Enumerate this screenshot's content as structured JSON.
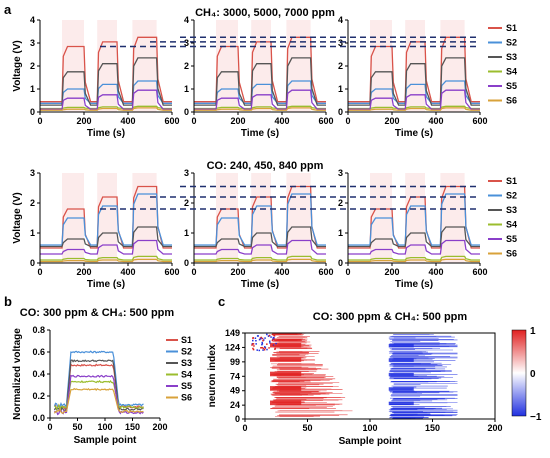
{
  "panels": {
    "a": {
      "letter": "a"
    },
    "b": {
      "letter": "b"
    },
    "c": {
      "letter": "c"
    }
  },
  "colors": {
    "S1": "#d9534a",
    "S2": "#4a90d9",
    "S3": "#555555",
    "S4": "#9bbd2e",
    "S5": "#8a3fc9",
    "S6": "#d8a23a",
    "guide": "#1f2f6e",
    "pos": "#e02020",
    "neg": "#2030e0"
  },
  "chart_data": [
    {
      "id": "a_top",
      "type": "line",
      "title": "CH₄: 3000, 5000, 7000 ppm",
      "xlabel": "Time (s)",
      "ylabel": "Voltage (V)",
      "xlim": [
        0,
        600
      ],
      "ylim": [
        0,
        4
      ],
      "xticks": [
        "0",
        "200",
        "400",
        "600"
      ],
      "yticks": [
        "0",
        "1",
        "2",
        "3",
        "4"
      ],
      "n_subplots": 3,
      "pulses": [
        [
          100,
          200
        ],
        [
          260,
          350
        ],
        [
          420,
          530
        ]
      ],
      "legend": [
        "S1",
        "S2",
        "S3",
        "S4",
        "S5",
        "S6"
      ],
      "baseline": [
        0.45,
        0.38,
        0.3,
        0.15,
        0.12,
        0.08
      ],
      "levels": [
        [
          2.85,
          3.05,
          3.25
        ],
        [
          1.0,
          1.2,
          1.35
        ],
        [
          1.75,
          2.1,
          2.35
        ],
        [
          0.2,
          0.22,
          0.25
        ],
        [
          0.6,
          0.75,
          0.95
        ],
        [
          0.12,
          0.15,
          0.18
        ]
      ],
      "guides": [
        2.85,
        3.05,
        3.25
      ]
    },
    {
      "id": "a_bottom",
      "type": "line",
      "title": "CO: 240, 450, 840 ppm",
      "xlabel": "Time (s)",
      "ylabel": "Voltage (V)",
      "xlim": [
        0,
        600
      ],
      "ylim": [
        0,
        3
      ],
      "xticks": [
        "0",
        "200",
        "400",
        "600"
      ],
      "yticks": [
        "0",
        "1",
        "2",
        "3"
      ],
      "n_subplots": 3,
      "pulses": [
        [
          100,
          200
        ],
        [
          260,
          350
        ],
        [
          420,
          530
        ]
      ],
      "legend": [
        "S1",
        "S2",
        "S3",
        "S4",
        "S5",
        "S6"
      ],
      "baseline": [
        0.5,
        0.6,
        0.55,
        0.1,
        0.3,
        0.05
      ],
      "levels": [
        [
          1.8,
          2.2,
          2.55
        ],
        [
          1.5,
          1.9,
          2.3
        ],
        [
          0.8,
          1.0,
          1.2
        ],
        [
          0.15,
          0.18,
          0.22
        ],
        [
          0.45,
          0.6,
          0.75
        ],
        [
          0.08,
          0.1,
          0.12
        ]
      ],
      "guides": [
        1.8,
        2.2,
        2.55
      ]
    },
    {
      "id": "b",
      "type": "line",
      "title": "CO: 300 ppm & CH₄: 500 ppm",
      "xlabel": "Sample point",
      "ylabel": "Normalized voltage",
      "xlim": [
        0,
        200
      ],
      "ylim": [
        0,
        0.8
      ],
      "xticks": [
        "0",
        "50",
        "100",
        "150",
        "200"
      ],
      "yticks": [
        "0.0",
        "0.2",
        "0.4",
        "0.6",
        "0.8"
      ],
      "legend": [
        "S1",
        "S2",
        "S3",
        "S4",
        "S5",
        "S6"
      ],
      "baseline": [
        0.1,
        0.12,
        0.08,
        0.1,
        0.05,
        0.06
      ],
      "plateau": [
        0.48,
        0.6,
        0.52,
        0.33,
        0.38,
        0.26
      ],
      "step_on": 30,
      "step_off": 115,
      "x_end": 170
    },
    {
      "id": "c",
      "type": "heatmap",
      "title": "CO: 300 ppm & CH₄: 500 ppm",
      "xlabel": "Sample point",
      "ylabel": "neuron index",
      "xlim": [
        0,
        200
      ],
      "ylim": [
        0,
        149
      ],
      "xticks": [
        "0",
        "50",
        "100",
        "150",
        "200"
      ],
      "yticks": [
        "149",
        "124",
        "99",
        "74",
        "49",
        "24",
        "0"
      ],
      "colorbar_ticks": [
        "1",
        "0",
        "−1"
      ],
      "colorbar_range": [
        -1,
        1
      ],
      "positive_region": [
        20,
        115
      ],
      "negative_region": [
        115,
        170
      ]
    }
  ]
}
